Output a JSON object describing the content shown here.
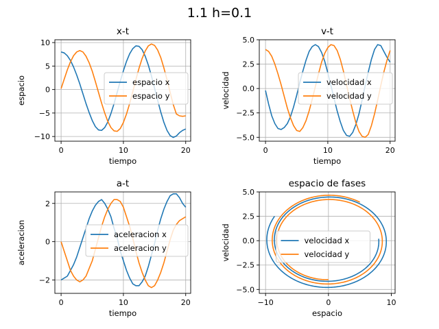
{
  "figure": {
    "title": "1.1 h=0.1"
  },
  "chart_data": [
    {
      "type": "line",
      "title": "x-t",
      "xlabel": "tiempo",
      "ylabel": "espacio",
      "xlim": [
        -1,
        20.8
      ],
      "ylim": [
        -11,
        10.6
      ],
      "xticks": [
        0,
        10,
        20
      ],
      "yticks": [
        -10,
        -5,
        0,
        5,
        10
      ],
      "xtick_labels": [
        "0",
        "10",
        "20"
      ],
      "ytick_labels": [
        "−10",
        "−5",
        "0",
        "5",
        "10"
      ],
      "grid": true,
      "legend": "center-right",
      "series": [
        {
          "name": "espacio x",
          "color": "#1f77b4",
          "x": [
            0,
            0.5,
            1,
            1.5,
            2,
            2.5,
            3,
            3.5,
            4,
            4.5,
            5,
            5.5,
            6,
            6.5,
            7,
            7.5,
            8,
            8.5,
            9,
            9.5,
            10,
            10.5,
            11,
            11.5,
            12,
            12.5,
            13,
            13.5,
            14,
            14.5,
            15,
            15.5,
            16,
            16.5,
            17,
            17.5,
            18,
            18.5,
            19,
            19.5,
            20
          ],
          "y": [
            8.0,
            7.8,
            7.2,
            6.2,
            4.8,
            3.1,
            1.2,
            -0.9,
            -3.0,
            -4.9,
            -6.6,
            -7.9,
            -8.6,
            -8.7,
            -8.1,
            -6.9,
            -5.1,
            -3.0,
            -0.6,
            1.8,
            4.0,
            6.0,
            7.6,
            8.7,
            9.3,
            9.2,
            8.5,
            7.1,
            5.2,
            2.9,
            0.3,
            -2.3,
            -4.8,
            -7.0,
            -8.7,
            -9.8,
            -10.2,
            -9.9,
            -9.2,
            -8.7,
            -8.4
          ]
        },
        {
          "name": "espacio y",
          "color": "#ff7f0e",
          "x": [
            0,
            0.5,
            1,
            1.5,
            2,
            2.5,
            3,
            3.5,
            4,
            4.5,
            5,
            5.5,
            6,
            6.5,
            7,
            7.5,
            8,
            8.5,
            9,
            9.5,
            10,
            10.5,
            11,
            11.5,
            12,
            12.5,
            13,
            13.5,
            14,
            14.5,
            15,
            15.5,
            16,
            16.5,
            17,
            17.5,
            18,
            18.5,
            19,
            19.5,
            20
          ],
          "y": [
            0.2,
            2.2,
            4.2,
            5.9,
            7.2,
            8.0,
            8.3,
            8.0,
            7.1,
            5.7,
            3.9,
            1.7,
            -0.6,
            -2.9,
            -5.0,
            -6.8,
            -8.1,
            -8.8,
            -8.9,
            -8.3,
            -7.0,
            -5.2,
            -3.0,
            -0.5,
            2.1,
            4.5,
            6.6,
            8.2,
            9.3,
            9.7,
            9.4,
            8.4,
            6.8,
            4.6,
            2.1,
            -0.6,
            -3.2,
            -5.2,
            -5.6,
            -5.7,
            -5.6
          ]
        }
      ]
    },
    {
      "type": "line",
      "title": "v-t",
      "xlabel": "tiempo",
      "ylabel": "velocidad",
      "xlim": [
        -1,
        20.8
      ],
      "ylim": [
        -5.4,
        5.0
      ],
      "xticks": [
        0,
        10,
        20
      ],
      "yticks": [
        -5.0,
        -2.5,
        0.0,
        2.5,
        5.0
      ],
      "xtick_labels": [
        "0",
        "10",
        "20"
      ],
      "ytick_labels": [
        "−5.0",
        "−2.5",
        "0.0",
        "2.5",
        "5.0"
      ],
      "grid": true,
      "legend": "center-right",
      "series": [
        {
          "name": "velocidad x",
          "color": "#1f77b4",
          "x": [
            0,
            0.5,
            1,
            1.5,
            2,
            2.5,
            3,
            3.5,
            4,
            4.5,
            5,
            5.5,
            6,
            6.5,
            7,
            7.5,
            8,
            8.5,
            9,
            9.5,
            10,
            10.5,
            11,
            11.5,
            12,
            12.5,
            13,
            13.5,
            14,
            14.5,
            15,
            15.5,
            16,
            16.5,
            17,
            17.5,
            18,
            18.5,
            19,
            19.5,
            20
          ],
          "y": [
            -0.2,
            -1.6,
            -2.8,
            -3.6,
            -4.1,
            -4.2,
            -4.0,
            -3.6,
            -2.9,
            -1.9,
            -0.7,
            0.6,
            1.8,
            2.9,
            3.8,
            4.3,
            4.5,
            4.3,
            3.7,
            2.8,
            1.6,
            0.3,
            -1.0,
            -2.3,
            -3.4,
            -4.3,
            -4.8,
            -4.9,
            -4.5,
            -3.7,
            -2.6,
            -1.2,
            0.3,
            1.7,
            3.0,
            4.0,
            4.5,
            4.4,
            3.8,
            3.2,
            2.7
          ]
        },
        {
          "name": "velocidad y",
          "color": "#ff7f0e",
          "x": [
            0,
            0.5,
            1,
            1.5,
            2,
            2.5,
            3,
            3.5,
            4,
            4.5,
            5,
            5.5,
            6,
            6.5,
            7,
            7.5,
            8,
            8.5,
            9,
            9.5,
            10,
            10.5,
            11,
            11.5,
            12,
            12.5,
            13,
            13.5,
            14,
            14.5,
            15,
            15.5,
            16,
            16.5,
            17,
            17.5,
            18,
            18.5,
            19,
            19.5,
            20
          ],
          "y": [
            4.0,
            3.8,
            3.3,
            2.5,
            1.5,
            0.4,
            -0.8,
            -2.0,
            -3.0,
            -3.8,
            -4.3,
            -4.4,
            -4.0,
            -3.3,
            -2.3,
            -1.1,
            0.2,
            1.5,
            2.7,
            3.6,
            4.2,
            4.5,
            4.4,
            3.9,
            3.0,
            1.8,
            0.4,
            -1.0,
            -2.3,
            -3.5,
            -4.4,
            -4.9,
            -5.0,
            -4.7,
            -3.8,
            -2.6,
            -1.2,
            0.3,
            1.7,
            2.9,
            3.9
          ]
        }
      ]
    },
    {
      "type": "line",
      "title": "a-t",
      "xlabel": "tiempo",
      "ylabel": "aceleracion",
      "xlim": [
        -1,
        20.8
      ],
      "ylim": [
        -2.7,
        2.6
      ],
      "xticks": [
        0,
        10,
        20
      ],
      "yticks": [
        -2,
        0,
        2
      ],
      "xtick_labels": [
        "0",
        "10",
        "20"
      ],
      "ytick_labels": [
        "−2",
        "0",
        "2"
      ],
      "grid": true,
      "legend": "center-right",
      "series": [
        {
          "name": "aceleracion x",
          "color": "#1f77b4",
          "x": [
            0,
            0.5,
            1,
            1.5,
            2,
            2.5,
            3,
            3.5,
            4,
            4.5,
            5,
            5.5,
            6,
            6.5,
            7,
            7.5,
            8,
            8.5,
            9,
            9.5,
            10,
            10.5,
            11,
            11.5,
            12,
            12.5,
            13,
            13.5,
            14,
            14.5,
            15,
            15.5,
            16,
            16.5,
            17,
            17.5,
            18,
            18.5,
            19,
            19.5,
            20
          ],
          "y": [
            -2.0,
            -1.9,
            -1.8,
            -1.5,
            -1.2,
            -0.8,
            -0.3,
            0.2,
            0.7,
            1.2,
            1.6,
            1.9,
            2.1,
            2.2,
            2.0,
            1.7,
            1.3,
            0.7,
            0.2,
            -0.5,
            -1.0,
            -1.5,
            -1.9,
            -2.2,
            -2.3,
            -2.3,
            -2.1,
            -1.8,
            -1.3,
            -0.7,
            -0.1,
            0.6,
            1.2,
            1.7,
            2.1,
            2.4,
            2.5,
            2.5,
            2.3,
            2.0,
            1.8
          ]
        },
        {
          "name": "aceleracion y",
          "color": "#ff7f0e",
          "x": [
            0,
            0.5,
            1,
            1.5,
            2,
            2.5,
            3,
            3.5,
            4,
            4.5,
            5,
            5.5,
            6,
            6.5,
            7,
            7.5,
            8,
            8.5,
            9,
            9.5,
            10,
            10.5,
            11,
            11.5,
            12,
            12.5,
            13,
            13.5,
            14,
            14.5,
            15,
            15.5,
            16,
            16.5,
            17,
            17.5,
            18,
            18.5,
            19,
            19.5,
            20
          ],
          "y": [
            0.0,
            -0.5,
            -1.0,
            -1.5,
            -1.8,
            -2.0,
            -2.1,
            -2.0,
            -1.8,
            -1.4,
            -1.0,
            -0.4,
            0.2,
            0.8,
            1.3,
            1.7,
            2.0,
            2.2,
            2.2,
            2.1,
            1.8,
            1.3,
            0.8,
            0.2,
            -0.5,
            -1.1,
            -1.6,
            -2.0,
            -2.3,
            -2.4,
            -2.3,
            -2.0,
            -1.6,
            -1.1,
            -0.5,
            0.1,
            0.6,
            0.9,
            1.1,
            1.2,
            1.3
          ]
        }
      ]
    },
    {
      "type": "line",
      "title": "espacio de fases",
      "xlabel": "espacio",
      "ylabel": "velocidad",
      "xlim": [
        -11,
        10.6
      ],
      "ylim": [
        -5.4,
        5.0
      ],
      "xticks": [
        -10,
        0,
        10
      ],
      "yticks": [
        -5.0,
        -2.5,
        0.0,
        2.5,
        5.0
      ],
      "xtick_labels": [
        "−10",
        "0",
        "10"
      ],
      "ytick_labels": [
        "−5.0",
        "−2.5",
        "0.0",
        "2.5",
        "5.0"
      ],
      "grid": true,
      "legend": "center",
      "series": [
        {
          "name": "velocidad x",
          "color": "#1f77b4",
          "spiral": {
            "t_max": 20.0,
            "r_start": 8.0,
            "r_end": 9.9,
            "v_start": 4.0,
            "v_end": 5.0,
            "phase": -0.05,
            "omega": 0.5
          }
        },
        {
          "name": "velocidad y",
          "color": "#ff7f0e",
          "spiral": {
            "t_max": 20.0,
            "r_start": 8.0,
            "r_end": 9.2,
            "v_start": 4.0,
            "v_end": 4.7,
            "phase": 1.5708,
            "omega": 0.5
          }
        }
      ]
    }
  ]
}
